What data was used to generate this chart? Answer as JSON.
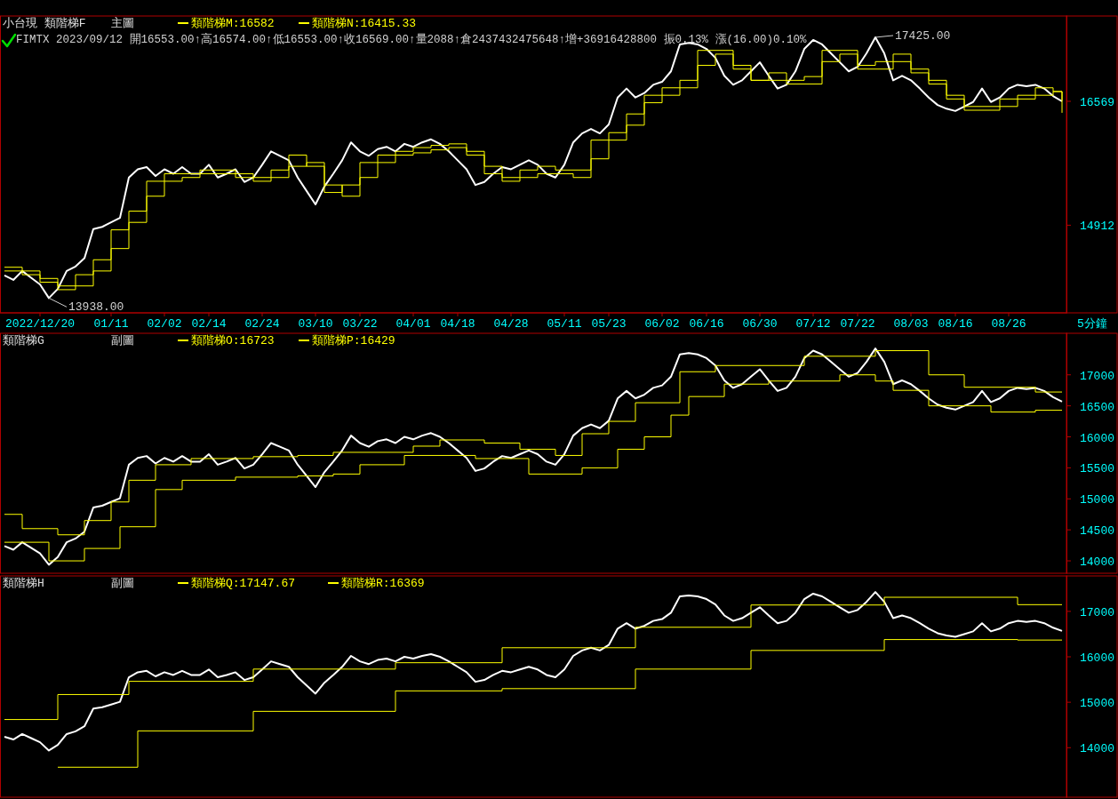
{
  "chart_data": [
    {
      "type": "line",
      "title": "小台現 類階梯F",
      "subtitle": "主圖",
      "xlabel": "5分鐘",
      "legend": "top left",
      "annotations": [
        "FIMTX 2023/09/12 開16553.00↑高16574.00↑低16553.00↑收16569.00↑量2088↑倉2437432475648↑增+36916428800 振0.13% 漲(16.00)0.10%"
      ],
      "categories": [
        null,
        null,
        null,
        null,
        "2022/12/20",
        null,
        null,
        null,
        null,
        null,
        null,
        null,
        "01/11",
        null,
        null,
        null,
        null,
        null,
        "02/02",
        null,
        null,
        null,
        null,
        "02/14",
        null,
        null,
        null,
        null,
        null,
        "02/24",
        null,
        null,
        null,
        null,
        null,
        "03/10",
        null,
        null,
        null,
        null,
        "03/22",
        null,
        null,
        null,
        null,
        null,
        "04/01",
        null,
        null,
        null,
        null,
        "04/18",
        null,
        null,
        null,
        null,
        null,
        "04/28",
        null,
        null,
        null,
        null,
        null,
        "05/11",
        null,
        null,
        null,
        null,
        "05/23",
        null,
        null,
        null,
        null,
        null,
        "06/02",
        null,
        null,
        null,
        null,
        "06/16",
        null,
        null,
        null,
        null,
        null,
        "06/30",
        null,
        null,
        null,
        null,
        null,
        "07/12",
        null,
        null,
        null,
        null,
        "07/22",
        null,
        null,
        null,
        null,
        null,
        "08/03",
        null,
        null,
        null,
        null,
        "08/16",
        null,
        null,
        null,
        null,
        null,
        "08/26",
        null,
        null,
        null,
        null,
        null,
        null
      ],
      "ylim": [
        13740,
        17710
      ],
      "yticks": [
        14912,
        16569
      ],
      "series": [
        {
          "color": "#ffffff",
          "value_labels": [
            null,
            null,
            null,
            null,
            null,
            "13938.00",
            null,
            null,
            null,
            null,
            null,
            null,
            null,
            null,
            null,
            null,
            null,
            null,
            null,
            null,
            null,
            null,
            null,
            null,
            null,
            null,
            null,
            null,
            null,
            null,
            null,
            null,
            null,
            null,
            null,
            null,
            null,
            null,
            null,
            null,
            null,
            null,
            null,
            null,
            null,
            null,
            null,
            null,
            null,
            null,
            null,
            null,
            null,
            null,
            null,
            null,
            null,
            null,
            null,
            null,
            null,
            null,
            null,
            null,
            null,
            null,
            null,
            null,
            null,
            null,
            null,
            null,
            null,
            null,
            null,
            null,
            null,
            null,
            null,
            null,
            null,
            null,
            null,
            null,
            null,
            null,
            null,
            null,
            null,
            null,
            null,
            null,
            null,
            null,
            null,
            null,
            null,
            null,
            "17425.00",
            null,
            null,
            null,
            null,
            null,
            null,
            null,
            null,
            null,
            null,
            null,
            null,
            null,
            null,
            null,
            null,
            null,
            null,
            null,
            null,
            null
          ],
          "values": [
            14240,
            14180,
            14300,
            14210,
            14120,
            13938,
            14060,
            14300,
            14360,
            14470,
            14860,
            14890,
            14950,
            15010,
            15550,
            15660,
            15690,
            15570,
            15660,
            15600,
            15690,
            15600,
            15600,
            15720,
            15550,
            15600,
            15660,
            15490,
            15550,
            15720,
            15900,
            15840,
            15780,
            15550,
            15370,
            15190,
            15430,
            15600,
            15780,
            16020,
            15900,
            15840,
            15930,
            15960,
            15900,
            16000,
            15960,
            16020,
            16060,
            16000,
            15900,
            15780,
            15660,
            15450,
            15490,
            15600,
            15690,
            15660,
            15720,
            15780,
            15720,
            15600,
            15550,
            15720,
            16020,
            16140,
            16200,
            16140,
            16260,
            16620,
            16740,
            16620,
            16680,
            16790,
            16830,
            16970,
            17330,
            17350,
            17330,
            17270,
            17150,
            16910,
            16790,
            16850,
            16970,
            17090,
            16910,
            16740,
            16790,
            16970,
            17270,
            17390,
            17330,
            17210,
            17090,
            16970,
            17030,
            17210,
            17425,
            17210,
            16850,
            16910,
            16850,
            16740,
            16620,
            16520,
            16470,
            16440,
            16500,
            16560,
            16740,
            16560,
            16620,
            16740,
            16790,
            16770,
            16790,
            16740,
            16640,
            16569
          ]
        },
        {
          "name": "類階梯M:16582",
          "type": "step",
          "color": "#ffff00",
          "values": [
            14300,
            14300,
            14250,
            14250,
            14150,
            14150,
            14050,
            14050,
            14250,
            14250,
            14450,
            14450,
            14850,
            14850,
            15100,
            15100,
            15500,
            15500,
            15600,
            15600,
            15600,
            15600,
            15650,
            15650,
            15650,
            15650,
            15600,
            15600,
            15550,
            15550,
            15650,
            15650,
            15850,
            15850,
            15700,
            15700,
            15350,
            15350,
            15450,
            15450,
            15750,
            15750,
            15850,
            15850,
            15900,
            15900,
            15950,
            15950,
            15980,
            15980,
            16000,
            16000,
            15850,
            15850,
            15600,
            15600,
            15550,
            15550,
            15650,
            15650,
            15700,
            15700,
            15650,
            15650,
            15650,
            15650,
            16050,
            16050,
            16150,
            16150,
            16400,
            16400,
            16650,
            16650,
            16750,
            16750,
            16850,
            16850,
            17250,
            17250,
            17250,
            17250,
            17000,
            17000,
            16850,
            16850,
            16950,
            16950,
            16850,
            16850,
            16900,
            16900,
            17250,
            17250,
            17250,
            17250,
            17050,
            17050,
            17100,
            17100,
            17200,
            17200,
            16950,
            16950,
            16800,
            16800,
            16600,
            16600,
            16500,
            16500,
            16500,
            16500,
            16600,
            16600,
            16650,
            16650,
            16750,
            16750,
            16700,
            16582
          ]
        },
        {
          "name": "類階梯N:16415.33",
          "type": "step",
          "color": "#ffff00",
          "values": [
            14350,
            14350,
            14300,
            14300,
            14200,
            14200,
            14100,
            14100,
            14100,
            14100,
            14300,
            14300,
            14600,
            14600,
            14950,
            14950,
            15300,
            15300,
            15500,
            15500,
            15550,
            15550,
            15600,
            15600,
            15600,
            15600,
            15550,
            15550,
            15500,
            15500,
            15550,
            15550,
            15700,
            15700,
            15750,
            15750,
            15450,
            15450,
            15300,
            15300,
            15550,
            15550,
            15750,
            15750,
            15850,
            15850,
            15880,
            15880,
            15920,
            15920,
            15950,
            15950,
            15900,
            15900,
            15700,
            15700,
            15500,
            15500,
            15550,
            15550,
            15600,
            15600,
            15600,
            15600,
            15550,
            15550,
            15800,
            15800,
            16050,
            16050,
            16250,
            16250,
            16550,
            16550,
            16650,
            16650,
            16750,
            16750,
            17050,
            17050,
            17200,
            17200,
            17050,
            17050,
            16850,
            16850,
            16850,
            16850,
            16800,
            16800,
            16800,
            16800,
            17100,
            17100,
            17200,
            17200,
            17000,
            17000,
            17000,
            17000,
            17100,
            17100,
            17000,
            17000,
            16850,
            16850,
            16650,
            16650,
            16450,
            16450,
            16450,
            16450,
            16500,
            16500,
            16600,
            16600,
            16650,
            16650,
            16700,
            16415.33
          ]
        }
      ]
    },
    {
      "type": "line",
      "title": "類階梯G",
      "subtitle": "副圖",
      "legend": "top left",
      "categories": [
        null,
        null,
        null,
        null,
        null,
        null,
        null,
        null,
        null,
        null,
        null,
        null,
        null,
        null,
        null,
        null,
        null,
        null,
        null,
        null,
        null,
        null,
        null,
        null,
        null,
        null,
        null,
        null,
        null,
        null,
        null,
        null,
        null,
        null,
        null,
        null,
        null,
        null,
        null,
        null,
        null,
        null,
        null,
        null,
        null,
        null,
        null,
        null,
        null,
        null,
        null,
        null,
        null,
        null,
        null,
        null,
        null,
        null,
        null,
        null,
        null,
        null,
        null,
        null,
        null,
        null,
        null,
        null,
        null,
        null,
        null,
        null,
        null,
        null,
        null,
        null,
        null,
        null,
        null,
        null,
        null,
        null,
        null,
        null,
        null,
        null,
        null,
        null,
        null,
        null,
        null,
        null,
        null,
        null,
        null,
        null,
        null,
        null,
        null,
        null,
        null,
        null,
        null,
        null,
        null,
        null,
        null,
        null,
        null,
        null,
        null,
        null,
        null,
        null,
        null,
        null,
        null,
        null,
        null,
        null
      ],
      "ylim": [
        13800,
        17670
      ],
      "yticks": [
        14000,
        14500,
        15000,
        15500,
        16000,
        16500,
        17000
      ],
      "series": [
        {
          "color": "#ffffff",
          "values": [
            14240,
            14180,
            14300,
            14210,
            14120,
            13938,
            14060,
            14300,
            14360,
            14470,
            14860,
            14890,
            14950,
            15010,
            15550,
            15660,
            15690,
            15570,
            15660,
            15600,
            15690,
            15600,
            15600,
            15720,
            15550,
            15600,
            15660,
            15490,
            15550,
            15720,
            15900,
            15840,
            15780,
            15550,
            15370,
            15190,
            15430,
            15600,
            15780,
            16020,
            15900,
            15840,
            15930,
            15960,
            15900,
            16000,
            15960,
            16020,
            16060,
            16000,
            15900,
            15780,
            15660,
            15450,
            15490,
            15600,
            15690,
            15660,
            15720,
            15780,
            15720,
            15600,
            15550,
            15720,
            16020,
            16140,
            16200,
            16140,
            16260,
            16620,
            16740,
            16620,
            16680,
            16790,
            16830,
            16970,
            17330,
            17350,
            17330,
            17270,
            17150,
            16910,
            16790,
            16850,
            16970,
            17090,
            16910,
            16740,
            16790,
            16970,
            17270,
            17390,
            17330,
            17210,
            17090,
            16970,
            17030,
            17210,
            17425,
            17210,
            16850,
            16910,
            16850,
            16740,
            16620,
            16520,
            16470,
            16440,
            16500,
            16560,
            16740,
            16560,
            16620,
            16740,
            16790,
            16770,
            16790,
            16740,
            16640,
            16569
          ]
        },
        {
          "name": "類階梯O:16723",
          "type": "step",
          "color": "#ffff00",
          "values": [
            14750,
            14750,
            14520,
            14520,
            14520,
            14520,
            14420,
            14420,
            14420,
            14650,
            14650,
            14650,
            14950,
            14950,
            15300,
            15300,
            15300,
            15550,
            15550,
            15550,
            15550,
            15650,
            15650,
            15650,
            15650,
            15650,
            15650,
            15650,
            15680,
            15680,
            15680,
            15680,
            15680,
            15700,
            15700,
            15700,
            15700,
            15750,
            15750,
            15750,
            15750,
            15750,
            15750,
            15750,
            15750,
            15750,
            15850,
            15850,
            15850,
            15950,
            15950,
            15950,
            15950,
            15950,
            15900,
            15900,
            15900,
            15900,
            15800,
            15800,
            15800,
            15800,
            15700,
            15700,
            15700,
            16050,
            16050,
            16050,
            16250,
            16250,
            16250,
            16550,
            16550,
            16550,
            16550,
            16550,
            17050,
            17050,
            17050,
            17050,
            17150,
            17150,
            17150,
            17150,
            17150,
            17150,
            17150,
            17150,
            17150,
            17150,
            17300,
            17300,
            17300,
            17300,
            17300,
            17300,
            17300,
            17300,
            17390,
            17390,
            17390,
            17390,
            17390,
            17390,
            17000,
            17000,
            17000,
            17000,
            16800,
            16800,
            16800,
            16800,
            16800,
            16800,
            16800,
            16800,
            16723,
            16723,
            16723,
            16723
          ]
        },
        {
          "name": "類階梯P:16429",
          "type": "step",
          "color": "#ffff00",
          "values": [
            14300,
            14300,
            14300,
            14300,
            14300,
            14000,
            14000,
            14000,
            14000,
            14200,
            14200,
            14200,
            14200,
            14550,
            14550,
            14550,
            14550,
            15150,
            15150,
            15150,
            15300,
            15300,
            15300,
            15300,
            15300,
            15300,
            15350,
            15350,
            15350,
            15350,
            15350,
            15350,
            15350,
            15370,
            15370,
            15370,
            15370,
            15400,
            15400,
            15400,
            15550,
            15550,
            15550,
            15550,
            15550,
            15700,
            15700,
            15700,
            15700,
            15700,
            15700,
            15700,
            15700,
            15650,
            15650,
            15650,
            15650,
            15650,
            15650,
            15400,
            15400,
            15400,
            15400,
            15400,
            15400,
            15500,
            15500,
            15500,
            15500,
            15800,
            15800,
            15800,
            16000,
            16000,
            16000,
            16350,
            16350,
            16650,
            16650,
            16650,
            16650,
            16850,
            16850,
            16850,
            16850,
            16850,
            16900,
            16900,
            16900,
            16900,
            16900,
            16900,
            16900,
            16900,
            17000,
            17000,
            17000,
            17000,
            16900,
            16900,
            16750,
            16750,
            16750,
            16750,
            16500,
            16500,
            16500,
            16500,
            16500,
            16500,
            16500,
            16400,
            16400,
            16400,
            16400,
            16400,
            16429,
            16429,
            16429,
            16429
          ]
        }
      ]
    },
    {
      "type": "line",
      "title": "類階梯H",
      "subtitle": "副圖",
      "legend": "top left",
      "categories": [
        null,
        null,
        null,
        null,
        null,
        null,
        null,
        null,
        null,
        null,
        null,
        null,
        null,
        null,
        null,
        null,
        null,
        null,
        null,
        null,
        null,
        null,
        null,
        null,
        null,
        null,
        null,
        null,
        null,
        null,
        null,
        null,
        null,
        null,
        null,
        null,
        null,
        null,
        null,
        null,
        null,
        null,
        null,
        null,
        null,
        null,
        null,
        null,
        null,
        null,
        null,
        null,
        null,
        null,
        null,
        null,
        null,
        null,
        null,
        null,
        null,
        null,
        null,
        null,
        null,
        null,
        null,
        null,
        null,
        null,
        null,
        null,
        null,
        null,
        null,
        null,
        null,
        null,
        null,
        null,
        null,
        null,
        null,
        null,
        null,
        null,
        null,
        null,
        null,
        null,
        null,
        null,
        null,
        null,
        null,
        null,
        null,
        null,
        null,
        null,
        null,
        null,
        null,
        null,
        null,
        null,
        null,
        null,
        null,
        null,
        null,
        null,
        null,
        null,
        null,
        null,
        null,
        null,
        null,
        null
      ],
      "ylim": [
        12910,
        17780
      ],
      "yticks": [
        14000,
        15000,
        16000,
        17000
      ],
      "series": [
        {
          "color": "#ffffff",
          "values": [
            14240,
            14180,
            14300,
            14210,
            14120,
            13938,
            14060,
            14300,
            14360,
            14470,
            14860,
            14890,
            14950,
            15010,
            15550,
            15660,
            15690,
            15570,
            15660,
            15600,
            15690,
            15600,
            15600,
            15720,
            15550,
            15600,
            15660,
            15490,
            15550,
            15720,
            15900,
            15840,
            15780,
            15550,
            15370,
            15190,
            15430,
            15600,
            15780,
            16020,
            15900,
            15840,
            15930,
            15960,
            15900,
            16000,
            15960,
            16020,
            16060,
            16000,
            15900,
            15780,
            15660,
            15450,
            15490,
            15600,
            15690,
            15660,
            15720,
            15780,
            15720,
            15600,
            15550,
            15720,
            16020,
            16140,
            16200,
            16140,
            16260,
            16620,
            16740,
            16620,
            16680,
            16790,
            16830,
            16970,
            17330,
            17350,
            17330,
            17270,
            17150,
            16910,
            16790,
            16850,
            16970,
            17090,
            16910,
            16740,
            16790,
            16970,
            17270,
            17390,
            17330,
            17210,
            17090,
            16970,
            17030,
            17210,
            17425,
            17210,
            16850,
            16910,
            16850,
            16740,
            16620,
            16520,
            16470,
            16440,
            16500,
            16560,
            16740,
            16560,
            16620,
            16740,
            16790,
            16770,
            16790,
            16740,
            16640,
            16569
          ]
        },
        {
          "name": "類階梯Q:17147.67",
          "type": "step",
          "color": "#ffff00",
          "values": [
            14620,
            14620,
            14620,
            14620,
            14620,
            14620,
            15170,
            15170,
            15170,
            15170,
            15170,
            15170,
            15170,
            15170,
            15460,
            15460,
            15460,
            15460,
            15460,
            15460,
            15460,
            15460,
            15460,
            15460,
            15460,
            15460,
            15460,
            15460,
            15730,
            15730,
            15730,
            15730,
            15730,
            15730,
            15730,
            15730,
            15730,
            15730,
            15730,
            15730,
            15730,
            15730,
            15730,
            15730,
            15870,
            15870,
            15870,
            15870,
            15870,
            15870,
            15870,
            15870,
            15870,
            15870,
            15870,
            15870,
            16200,
            16200,
            16200,
            16200,
            16200,
            16200,
            16200,
            16200,
            16200,
            16200,
            16200,
            16200,
            16200,
            16200,
            16200,
            16650,
            16650,
            16650,
            16650,
            16650,
            16650,
            16650,
            16650,
            16650,
            16650,
            16650,
            16650,
            16650,
            17140,
            17140,
            17140,
            17140,
            17140,
            17140,
            17140,
            17140,
            17140,
            17140,
            17140,
            17140,
            17140,
            17140,
            17140,
            17310,
            17310,
            17310,
            17310,
            17310,
            17310,
            17310,
            17310,
            17310,
            17310,
            17310,
            17310,
            17310,
            17310,
            17310,
            17147.67,
            17147.67,
            17147.67,
            17147.67,
            17147.67,
            17147.67
          ]
        },
        {
          "name": "類階梯R:16369",
          "type": "step",
          "color": "#ffff00",
          "values": [
            null,
            null,
            null,
            null,
            null,
            null,
            13570,
            13570,
            13570,
            13570,
            13570,
            13570,
            13570,
            13570,
            13570,
            14370,
            14370,
            14370,
            14370,
            14370,
            14370,
            14370,
            14370,
            14370,
            14370,
            14370,
            14370,
            14370,
            14800,
            14800,
            14800,
            14800,
            14800,
            14800,
            14800,
            14800,
            14800,
            14800,
            14800,
            14800,
            14800,
            14800,
            14800,
            14800,
            15250,
            15250,
            15250,
            15250,
            15250,
            15250,
            15250,
            15250,
            15250,
            15250,
            15250,
            15250,
            15300,
            15300,
            15300,
            15300,
            15300,
            15300,
            15300,
            15300,
            15300,
            15300,
            15300,
            15300,
            15300,
            15300,
            15300,
            15730,
            15730,
            15730,
            15730,
            15730,
            15730,
            15730,
            15730,
            15730,
            15730,
            15730,
            15730,
            15730,
            16140,
            16140,
            16140,
            16140,
            16140,
            16140,
            16140,
            16140,
            16140,
            16140,
            16140,
            16140,
            16140,
            16140,
            16140,
            16380,
            16380,
            16380,
            16380,
            16380,
            16380,
            16380,
            16380,
            16380,
            16380,
            16380,
            16380,
            16380,
            16380,
            16380,
            16369,
            16369,
            16369,
            16369,
            16369,
            16369
          ]
        }
      ]
    }
  ]
}
